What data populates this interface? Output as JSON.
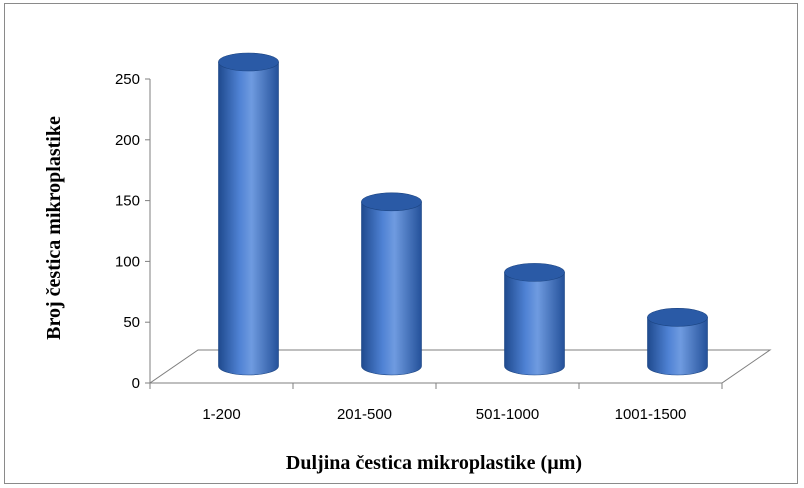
{
  "chart_data": {
    "type": "bar",
    "style": "3d-cylinder",
    "categories": [
      "1-200",
      "201-500",
      "501-1000",
      "1001-1500"
    ],
    "values": [
      250,
      135,
      77,
      40
    ],
    "xlabel": "Duljina čestica mikroplastike (µm)",
    "ylabel": "Broj čestica mikroplastike",
    "ylim": [
      0,
      250
    ],
    "yticks": [
      0,
      50,
      100,
      150,
      200,
      250
    ],
    "grid": false,
    "legend": "none",
    "colors": {
      "bar_light": "#6f9be0",
      "bar_mid": "#3f72c4",
      "bar_dark": "#1f4a8e",
      "bar_top": "#2a5aa6",
      "axis": "#7f7f7f"
    }
  }
}
